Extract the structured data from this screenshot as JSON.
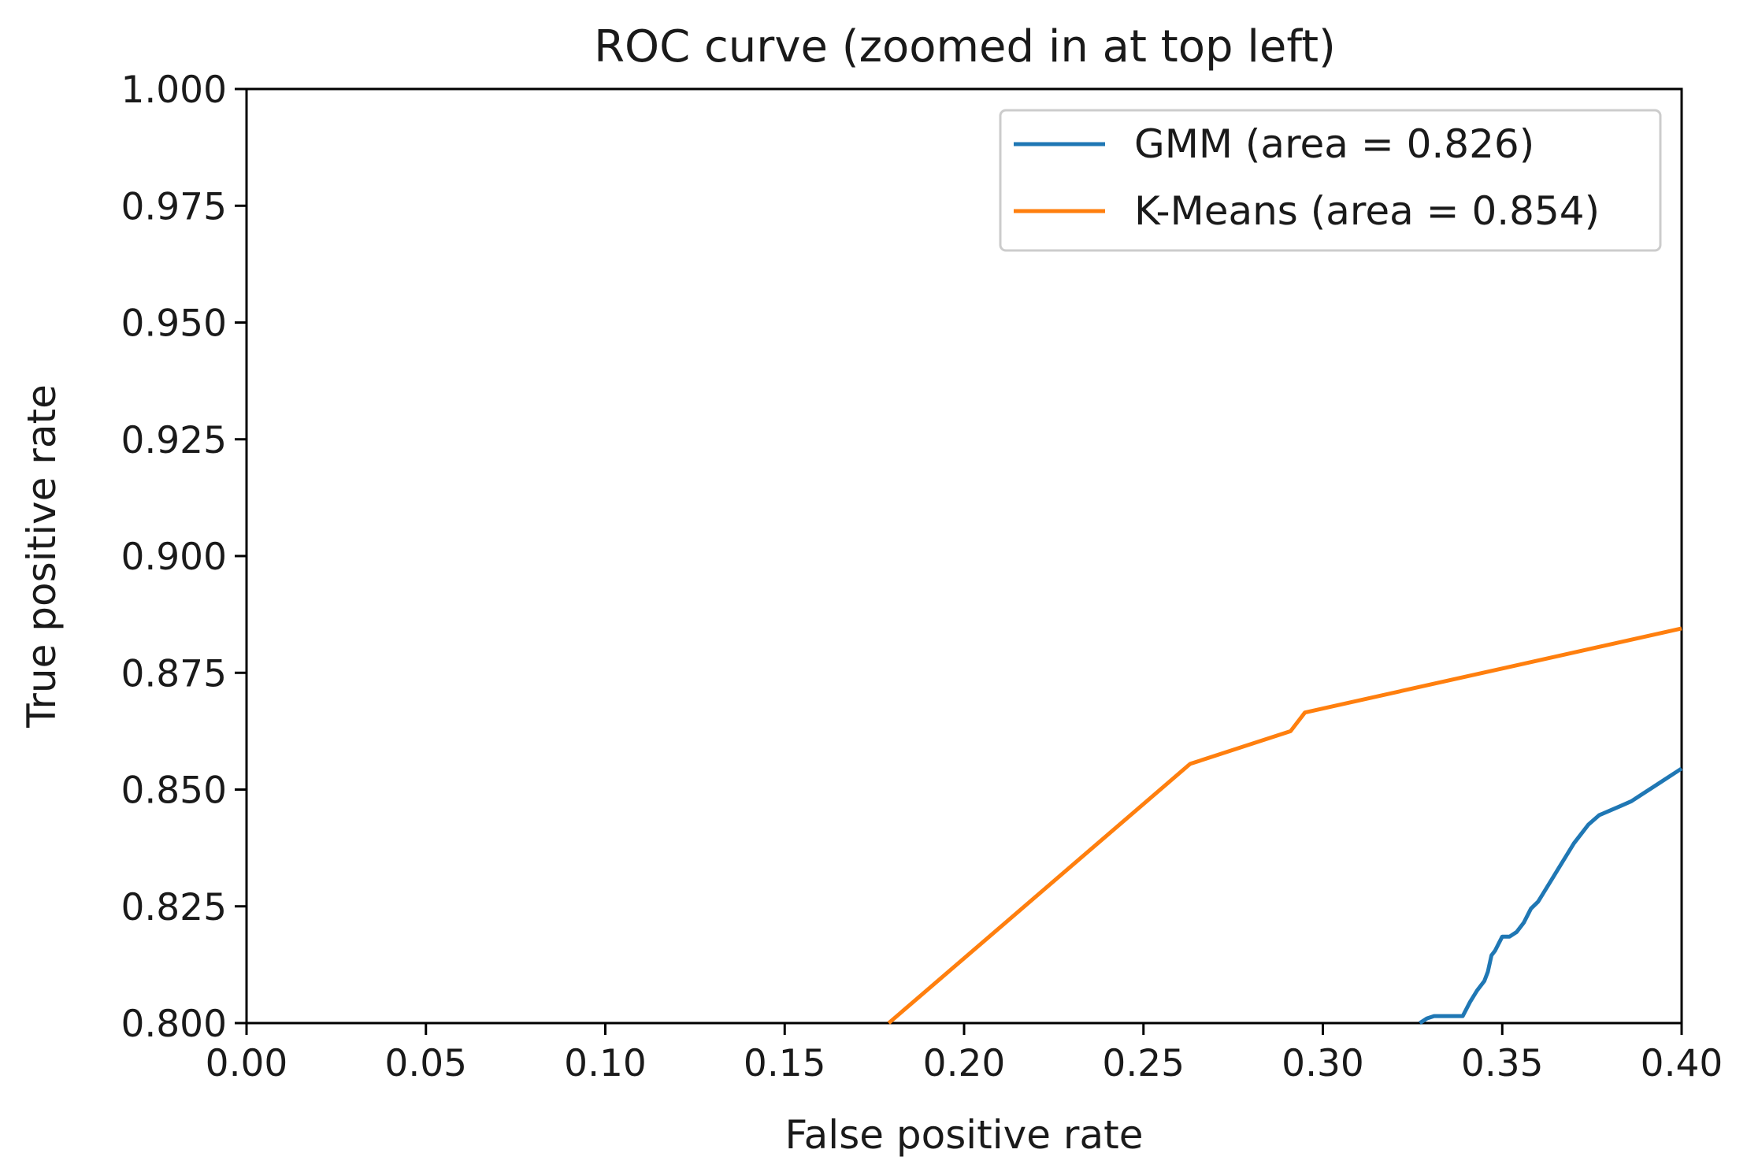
{
  "chart_data": {
    "type": "line",
    "title": "ROC curve (zoomed in at top left)",
    "xlabel": "False positive rate",
    "ylabel": "True positive rate",
    "xlim": [
      0.0,
      0.4
    ],
    "ylim": [
      0.8,
      1.0
    ],
    "xticks": [
      "0.00",
      "0.05",
      "0.10",
      "0.15",
      "0.20",
      "0.25",
      "0.30",
      "0.35",
      "0.40"
    ],
    "yticks": [
      "0.800",
      "0.825",
      "0.850",
      "0.875",
      "0.900",
      "0.925",
      "0.950",
      "0.975",
      "1.000"
    ],
    "grid": false,
    "legend_position": "top-right",
    "series": [
      {
        "name": "GMM (area = 0.826)",
        "color": "#1f77b4",
        "x": [
          0.327,
          0.329,
          0.331,
          0.334,
          0.337,
          0.339,
          0.341,
          0.343,
          0.345,
          0.346,
          0.347,
          0.348,
          0.35,
          0.352,
          0.354,
          0.356,
          0.358,
          0.36,
          0.362,
          0.364,
          0.366,
          0.368,
          0.37,
          0.372,
          0.374,
          0.377,
          0.38,
          0.383,
          0.386,
          0.389,
          0.392,
          0.395,
          0.398,
          0.4
        ],
        "y": [
          0.8,
          0.801,
          0.8015,
          0.8015,
          0.8015,
          0.8015,
          0.8045,
          0.807,
          0.809,
          0.811,
          0.8145,
          0.8155,
          0.8185,
          0.8185,
          0.8195,
          0.8215,
          0.8245,
          0.826,
          0.8285,
          0.831,
          0.8335,
          0.836,
          0.8385,
          0.8405,
          0.8425,
          0.8445,
          0.8455,
          0.8465,
          0.8475,
          0.849,
          0.8505,
          0.852,
          0.8535,
          0.8545
        ]
      },
      {
        "name": "K-Means (area = 0.854)",
        "color": "#ff7f0e",
        "x": [
          0.179,
          0.263,
          0.291,
          0.295,
          0.4
        ],
        "y": [
          0.8,
          0.8555,
          0.8625,
          0.8665,
          0.8845
        ]
      }
    ]
  }
}
